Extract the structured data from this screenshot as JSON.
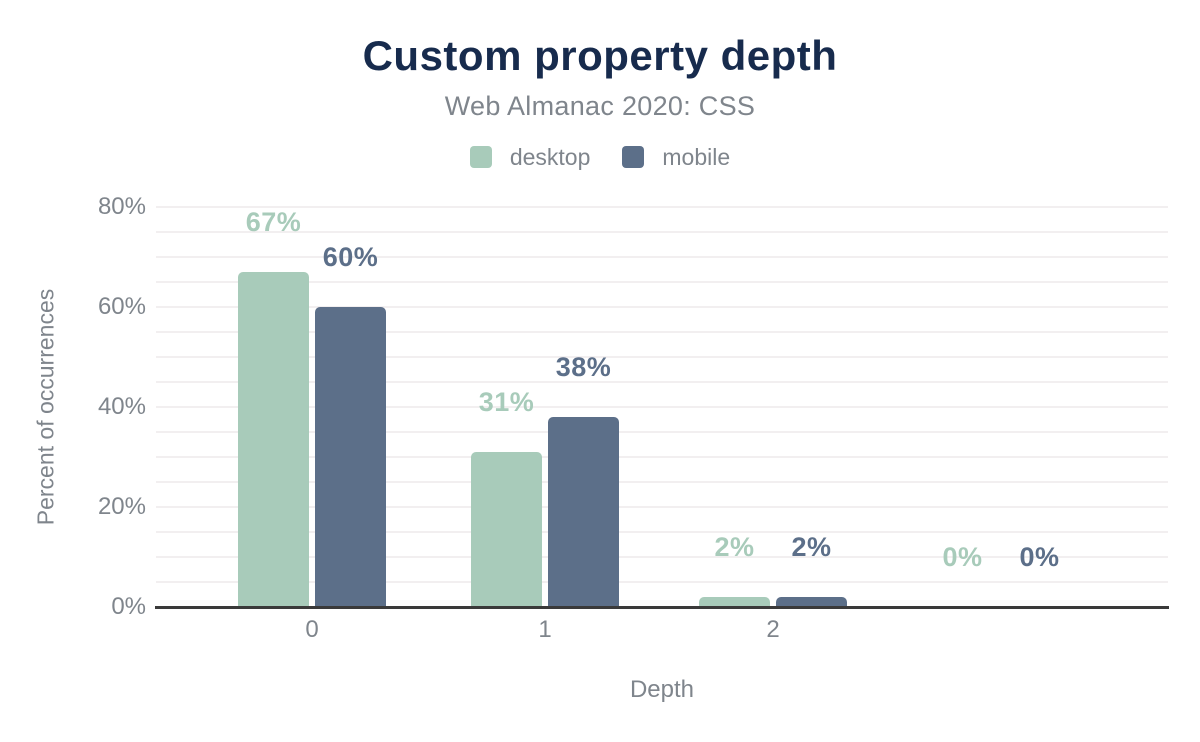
{
  "chart_data": {
    "type": "bar",
    "title": "Custom property depth",
    "subtitle": "Web Almanac 2020: CSS",
    "xlabel": "Depth",
    "ylabel": "Percent of occurrences",
    "ylim": [
      0,
      80
    ],
    "y_tick_values": [
      0,
      20,
      40,
      60,
      80
    ],
    "y_tick_labels": [
      "0%",
      "20%",
      "40%",
      "60%",
      "80%"
    ],
    "minor_grid_step_pct": 5,
    "grid": "horizontal-on",
    "legend_position": "top",
    "categories": [
      "0",
      "1",
      "2",
      ""
    ],
    "series": [
      {
        "name": "desktop",
        "color": "#a8cbba",
        "values": [
          67,
          31,
          2,
          0
        ],
        "labels": [
          "67%",
          "31%",
          "2%",
          "0%"
        ]
      },
      {
        "name": "mobile",
        "color": "#5c6f89",
        "values": [
          60,
          38,
          2,
          0
        ],
        "labels": [
          "60%",
          "38%",
          "2%",
          "0%"
        ]
      }
    ]
  },
  "colors": {
    "title": "#172b4d",
    "text_gray": "#7f858c",
    "gridline": "#f2eff0",
    "axis_line": "#3a3a3a",
    "background": "#ffffff"
  }
}
